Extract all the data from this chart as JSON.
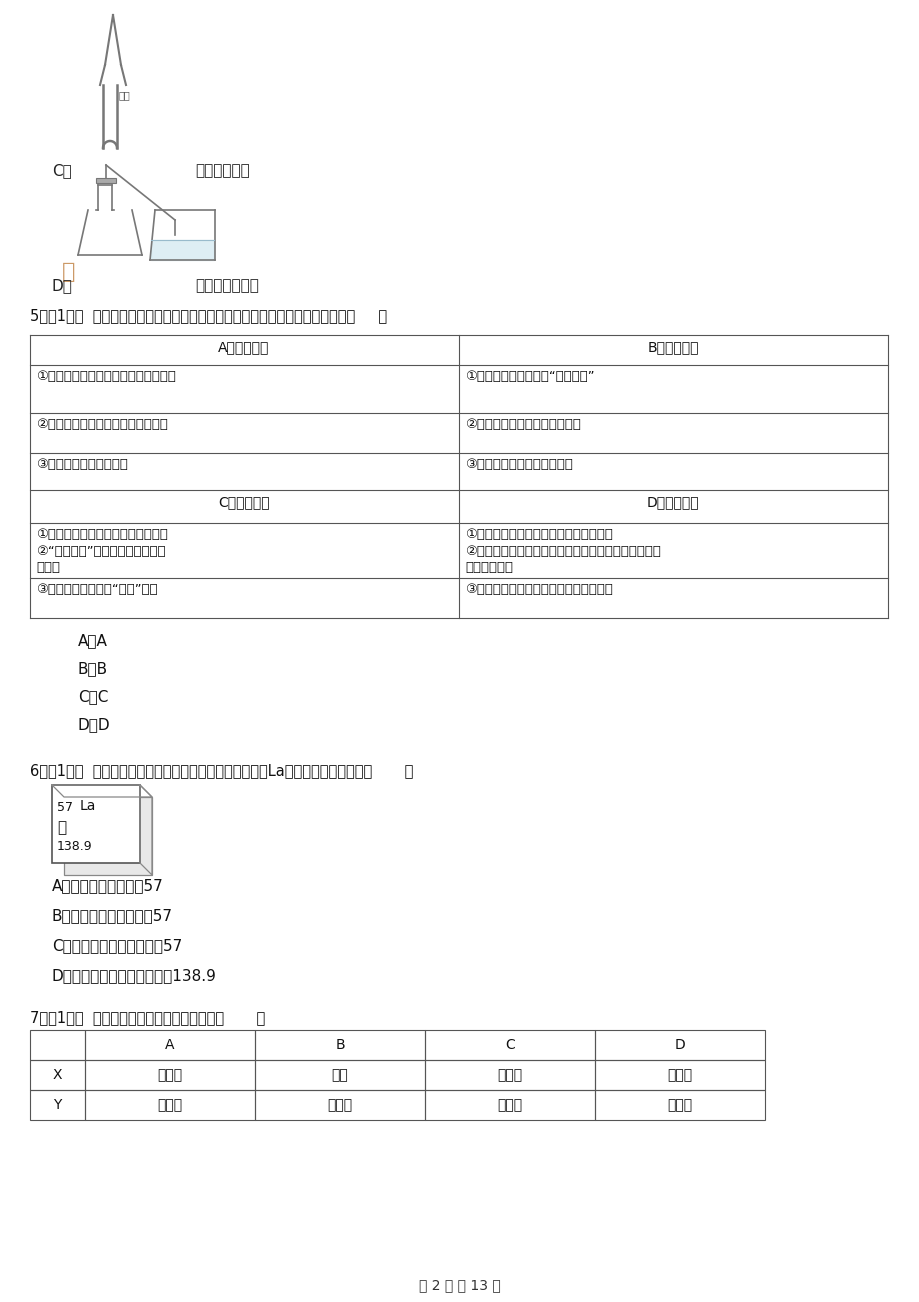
{
  "bg_color": "#ffffff",
  "text_color": "#000000",
  "page_width": 9.2,
  "page_height": 13.02,
  "content": {
    "top_text_C": "取用块状固体",
    "top_text_D": "检查装置气密性",
    "table5_A1": "①进入枯井、菜窖前，应先做灯火实验",
    "table5_B1": "①少用塑料袋可以减少“白色污染”",
    "table5_A2": "②用打火机检查液化石油气是否泄漏",
    "table5_B2": "②吃蔬菜和水果可以补充维生素",
    "table5_A3": "③不能用工业盐腌制食品",
    "table5_B3": "③可用燃烧法区别羊毛和洤纶",
    "table5_C1": "①煤、石油、天然气是不可再生能源",
    "table5_D1": "①氮肖、磷肖、钔肖是最主要的化学肥料",
    "table5_C2": "②“节能减排”可缓解温室效应等环境问题",
    "table5_D2": "②北方养鱼池冰面打洞是为了增加水中氧气溶解量，有利于鱼的呼吸",
    "table5_C3": "③太阳能、风能属于“绿色”能源",
    "table5_D3": "③锅炉长期用硬水既不安全，也浪费燃料",
    "q5_optA": "A．A",
    "q5_optB": "B．B",
    "q5_optC": "C．C",
    "q5_optD": "D．D",
    "q6_text": "镛的合金是一种储氢材料。下列有关元素镛（La）的说法不正确的是（       ）",
    "element_number": "57",
    "element_symbol": "La",
    "element_name": "镛",
    "element_mass": "138.9",
    "q6_optA": "A．该原子的中子数为57",
    "q6_optB": "B．该原子的核电荷数为57",
    "q6_optC": "C．该原子的核外电子数为57",
    "q6_optD": "D．该原子的相对原子质量为138.9",
    "q7_text": "如表选项符合图示从属关系的是（       ）",
    "table7_col_headers": [
      "",
      "A",
      "B",
      "C",
      "D"
    ],
    "table7_row_X": [
      "X",
      "氧化物",
      "单质",
      "纯净物",
      "纯净物"
    ],
    "table7_row_Y": [
      "Y",
      "化合物",
      "化合物",
      "化合物",
      "混合物"
    ],
    "footer": "第 2 页 共 13 页"
  }
}
